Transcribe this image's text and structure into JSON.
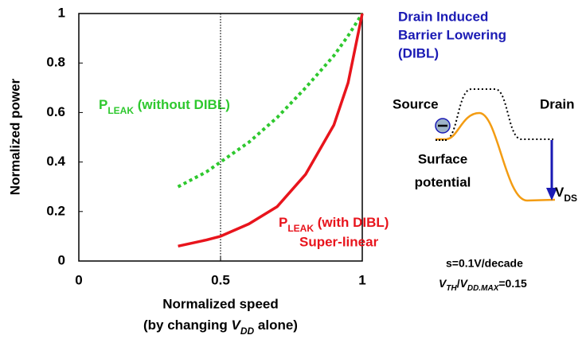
{
  "chart_data": {
    "type": "line",
    "y_label": "Normalized power",
    "x_label": "Normalized speed",
    "x_label2": [
      "(by changing ",
      "V",
      "DD",
      " alone)"
    ],
    "xlim": [
      0,
      1
    ],
    "ylim": [
      0,
      1
    ],
    "xticks": [
      0,
      0.5,
      1
    ],
    "yticks": [
      0,
      0.2,
      0.4,
      0.6,
      0.8,
      1
    ],
    "vlines": [
      0.5
    ],
    "series": [
      {
        "name": "P",
        "name_sub": "LEAK",
        "name_rest": " (without DIBL)",
        "color": "#2ec82e",
        "style": "dotted",
        "x": [
          0.35,
          0.45,
          0.5,
          0.6,
          0.7,
          0.8,
          0.9,
          0.95,
          1
        ],
        "values": [
          0.3,
          0.36,
          0.4,
          0.48,
          0.58,
          0.7,
          0.83,
          0.91,
          1
        ]
      },
      {
        "name": "P",
        "name_sub": "LEAK",
        "name_rest": " (with DIBL)",
        "note": "Super-linear",
        "color": "#e8141c",
        "style": "solid",
        "x": [
          0.35,
          0.45,
          0.5,
          0.6,
          0.7,
          0.8,
          0.9,
          0.95,
          1
        ],
        "values": [
          0.06,
          0.085,
          0.1,
          0.15,
          0.22,
          0.35,
          0.55,
          0.72,
          1
        ]
      }
    ]
  },
  "diagram": {
    "title": [
      "Drain Induced",
      "Barrier Lowering",
      "(DIBL)"
    ],
    "source": "Source",
    "drain": "Drain",
    "surface": [
      "Surface",
      "potential"
    ],
    "vds": [
      "V",
      "DS"
    ],
    "slope": "s=0.1V/decade",
    "ratio": [
      "V",
      "TH",
      "/",
      "V",
      "DD.MAX",
      "=0.15"
    ]
  }
}
